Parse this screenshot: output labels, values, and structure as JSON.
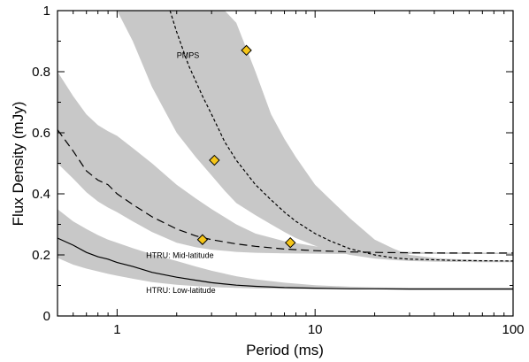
{
  "chart_data": {
    "type": "line",
    "xlabel": "Period (ms)",
    "ylabel": "Flux Density (mJy)",
    "xscale": "log",
    "xlim": [
      0.5,
      100
    ],
    "ylim": [
      0,
      1
    ],
    "xticks": [
      {
        "value": 1,
        "label": "1"
      },
      {
        "value": 10,
        "label": "10"
      },
      {
        "value": 100,
        "label": "100"
      }
    ],
    "yticks": [
      {
        "value": 0,
        "label": "0"
      },
      {
        "value": 0.2,
        "label": "0.2"
      },
      {
        "value": 0.4,
        "label": "0.4"
      },
      {
        "value": 0.6,
        "label": "0.6"
      },
      {
        "value": 0.8,
        "label": "0.8"
      },
      {
        "value": 1,
        "label": "1"
      }
    ],
    "grid": false,
    "series": [
      {
        "name": "HTRU: Low-latitude",
        "style": "solid",
        "color": "#000000",
        "x": [
          0.5,
          0.6,
          0.7,
          0.8,
          0.9,
          1.0,
          1.2,
          1.5,
          2.0,
          2.5,
          3.0,
          4.0,
          5.0,
          7.0,
          10,
          15,
          20,
          30,
          50,
          100
        ],
        "y": [
          0.255,
          0.232,
          0.208,
          0.194,
          0.186,
          0.175,
          0.162,
          0.143,
          0.127,
          0.117,
          0.109,
          0.101,
          0.097,
          0.093,
          0.091,
          0.089,
          0.089,
          0.088,
          0.088,
          0.088
        ],
        "band_upper": [
          0.35,
          0.31,
          0.285,
          0.265,
          0.25,
          0.24,
          0.222,
          0.202,
          0.18,
          0.162,
          0.148,
          0.13,
          0.12,
          0.109,
          0.101,
          0.096,
          0.094,
          0.093,
          0.093,
          0.093
        ],
        "band_lower": [
          0.19,
          0.168,
          0.155,
          0.146,
          0.138,
          0.132,
          0.122,
          0.111,
          0.102,
          0.098,
          0.095,
          0.092,
          0.09,
          0.089,
          0.088,
          0.087,
          0.087,
          0.086,
          0.086,
          0.086
        ]
      },
      {
        "name": "HTRU: Mid-latitude",
        "style": "longdash",
        "color": "#000000",
        "x": [
          0.5,
          0.6,
          0.7,
          0.8,
          0.9,
          1.0,
          1.2,
          1.5,
          2.0,
          2.5,
          3.0,
          4.0,
          5.0,
          7.0,
          10,
          15,
          20,
          30,
          50,
          100
        ],
        "y": [
          0.61,
          0.54,
          0.475,
          0.445,
          0.43,
          0.4,
          0.365,
          0.325,
          0.285,
          0.262,
          0.25,
          0.236,
          0.228,
          0.219,
          0.214,
          0.21,
          0.208,
          0.207,
          0.206,
          0.206
        ],
        "band_upper": [
          0.8,
          0.72,
          0.66,
          0.625,
          0.605,
          0.59,
          0.55,
          0.5,
          0.43,
          0.385,
          0.35,
          0.3,
          0.27,
          0.245,
          0.228,
          0.218,
          0.213,
          0.21,
          0.208,
          0.207
        ],
        "band_lower": [
          0.5,
          0.45,
          0.405,
          0.375,
          0.355,
          0.34,
          0.31,
          0.275,
          0.24,
          0.225,
          0.217,
          0.21,
          0.207,
          0.205,
          0.204,
          0.203,
          0.203,
          0.203,
          0.203,
          0.203
        ]
      },
      {
        "name": "PMPS",
        "style": "shortdash",
        "color": "#000000",
        "x": [
          1.85,
          2.0,
          2.3,
          2.7,
          3.0,
          3.5,
          4.0,
          5.0,
          6.0,
          7.0,
          8.0,
          10,
          12,
          15,
          20,
          25,
          30,
          40,
          50,
          70,
          100
        ],
        "y": [
          1.0,
          0.93,
          0.82,
          0.72,
          0.66,
          0.57,
          0.51,
          0.43,
          0.38,
          0.34,
          0.31,
          0.27,
          0.245,
          0.22,
          0.2,
          0.19,
          0.186,
          0.184,
          0.182,
          0.181,
          0.18
        ],
        "band_upper_x": [
          1.35,
          1.5,
          1.8,
          2.0,
          2.5,
          3.0,
          3.5,
          4.0,
          5.0,
          6.0,
          7.0,
          8.0,
          10,
          12,
          15,
          20,
          25,
          30,
          40,
          50,
          70,
          100
        ],
        "band_upper": [
          1.0,
          1.0,
          1.0,
          1.0,
          1.0,
          1.0,
          1.0,
          0.96,
          0.8,
          0.66,
          0.58,
          0.52,
          0.43,
          0.38,
          0.32,
          0.25,
          0.22,
          0.2,
          0.19,
          0.186,
          0.183,
          0.182
        ],
        "band_lower_x": [
          1.0,
          1.2,
          1.5,
          2.0,
          2.5,
          3.0,
          3.5,
          4.0,
          5.0,
          6.0,
          7.0,
          8.0,
          10,
          12,
          15,
          20,
          25,
          30,
          40,
          50,
          70,
          100
        ],
        "band_lower": [
          1.0,
          0.9,
          0.75,
          0.6,
          0.52,
          0.46,
          0.41,
          0.37,
          0.33,
          0.3,
          0.275,
          0.255,
          0.23,
          0.215,
          0.2,
          0.188,
          0.183,
          0.18,
          0.178,
          0.177,
          0.176,
          0.176
        ]
      }
    ],
    "markers": {
      "shape": "diamond",
      "fill": "#f5c518",
      "stroke": "#000000",
      "points": [
        {
          "x": 4.5,
          "y": 0.87
        },
        {
          "x": 3.1,
          "y": 0.51
        },
        {
          "x": 2.7,
          "y": 0.25
        },
        {
          "x": 7.5,
          "y": 0.24
        }
      ]
    },
    "annotations": [
      {
        "text": "PMPS",
        "x": 2.0,
        "y": 0.845
      },
      {
        "text": "HTRU: Mid-latitude",
        "x": 1.4,
        "y": 0.19
      },
      {
        "text": "HTRU: Low-latitude",
        "x": 1.4,
        "y": 0.075
      }
    ],
    "colors": {
      "band": "#c8c8c8",
      "line": "#000000",
      "marker_fill": "#f5c518"
    }
  }
}
